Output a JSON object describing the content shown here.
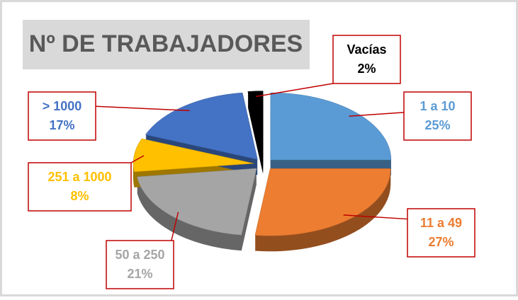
{
  "chart_data": {
    "type": "pie",
    "title": "Nº DE TRABAJADORES",
    "categories": [
      "1 a 10",
      "11 a 49",
      "50 a 250",
      "251 a 1000",
      "> 1000",
      "Vacías"
    ],
    "values": [
      25,
      27,
      21,
      8,
      17,
      2
    ],
    "value_labels": [
      "25%",
      "27%",
      "21%",
      "8%",
      "17%",
      "2%"
    ],
    "colors": [
      "#5b9bd5",
      "#ed7d31",
      "#a5a5a5",
      "#ffc000",
      "#4472c4",
      "#000000"
    ]
  }
}
